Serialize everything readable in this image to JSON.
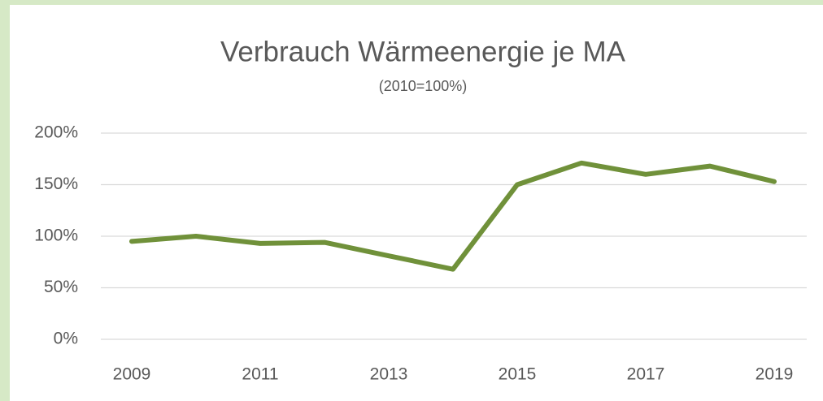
{
  "chart_data": {
    "type": "line",
    "title": "Verbrauch Wärmeenergie je MA",
    "subtitle": "(2010=100%)",
    "categories": [
      "2009",
      null,
      "2011",
      null,
      "2013",
      null,
      "2015",
      null,
      "2017",
      null,
      "2019"
    ],
    "series": [
      {
        "name": "Verbrauch",
        "color": "#70913a",
        "values": [
          95,
          100,
          93,
          94,
          81,
          68,
          150,
          171,
          160,
          168,
          153
        ]
      }
    ],
    "ylim": [
      0,
      200
    ],
    "yticks": [
      {
        "value": 0,
        "label": "0%"
      },
      {
        "value": 50,
        "label": "50%"
      },
      {
        "value": 100,
        "label": "100%"
      },
      {
        "value": 150,
        "label": "150%"
      },
      {
        "value": 200,
        "label": "200%"
      }
    ],
    "grid": true
  }
}
